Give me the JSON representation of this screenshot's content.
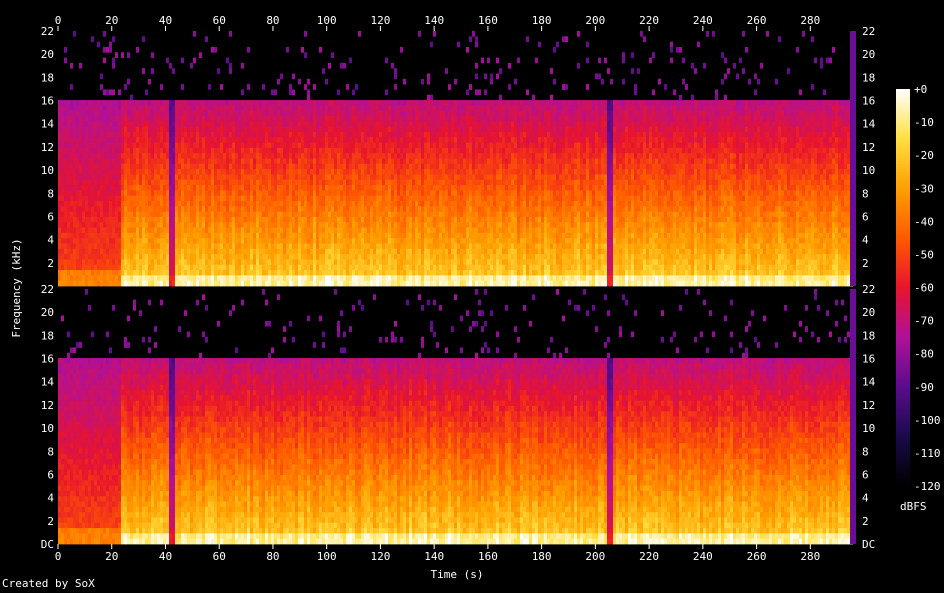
{
  "footer": {
    "credit": "Created by SoX"
  },
  "colors": {
    "background": "#000000",
    "text": "#ffffff"
  },
  "chart_data": {
    "type": "heatmap",
    "xlabel": "Time (s)",
    "ylabel": "Frequency (kHz)",
    "xlim": [
      0,
      297
    ],
    "ylim": [
      0,
      22
    ],
    "x_ticks": [
      "0",
      "20",
      "40",
      "60",
      "80",
      "100",
      "120",
      "140",
      "160",
      "180",
      "200",
      "220",
      "240",
      "260",
      "280"
    ],
    "y_ticks_top": [
      "2",
      "4",
      "6",
      "8",
      "10",
      "12",
      "14",
      "16",
      "18",
      "20",
      "22"
    ],
    "y_ticks_bottom": [
      "DC",
      "2",
      "4",
      "6",
      "8",
      "10",
      "12",
      "14",
      "16",
      "18",
      "20",
      "22"
    ],
    "channels": [
      {
        "channel": 1,
        "cutoff_khz": 16,
        "intro_end_s": 23,
        "quiet_notches_s": [
          42,
          205
        ]
      },
      {
        "channel": 2,
        "cutoff_khz": 16,
        "intro_end_s": 23,
        "quiet_notches_s": [
          42,
          205
        ]
      }
    ],
    "colorbar": {
      "unit": "dBFS",
      "ticks": [
        "+0",
        "-10",
        "-20",
        "-30",
        "-40",
        "-50",
        "-60",
        "-70",
        "-80",
        "-90",
        "-100",
        "-110",
        "-120"
      ],
      "range": [
        -120,
        0
      ],
      "stops": [
        "#000000",
        "#1a0a4a",
        "#5a0c8c",
        "#b0109a",
        "#e8142c",
        "#ff5a00",
        "#ffa000",
        "#ffe040",
        "#ffffff"
      ]
    }
  }
}
